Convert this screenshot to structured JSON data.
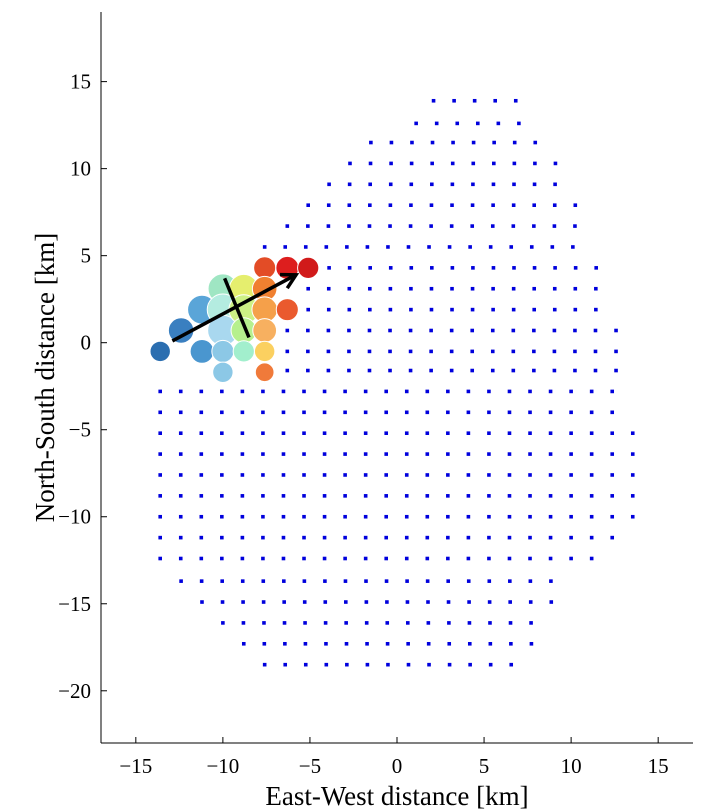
{
  "chart_data": {
    "type": "scatter",
    "title": "",
    "xlabel": "East-West distance [km]",
    "ylabel": "North-South distance [km]",
    "xlim": [
      -17,
      17
    ],
    "ylim": [
      -23,
      19
    ],
    "xticks": [
      -15,
      -10,
      -5,
      0,
      5,
      10,
      15
    ],
    "yticks": [
      -20,
      -15,
      -10,
      -5,
      0,
      5,
      10,
      15
    ],
    "xtick_labels": [
      "−15",
      "−10",
      "−5",
      "0",
      "5",
      "10",
      "15"
    ],
    "ytick_labels": [
      "−20",
      "−15",
      "−10",
      "−5",
      "0",
      "5",
      "10",
      "15"
    ],
    "grid": false,
    "legend": "none",
    "series": [
      {
        "marker": "small-square",
        "color": "#0000dd",
        "note_hidden": "",
        "x": [],
        "y": []
      },
      {
        "marker": "circle",
        "colormap": "jet",
        "points": [
          {
            "x": -13.6,
            "y": -0.5,
            "size": 1.0,
            "color": "#2b6eb0"
          },
          {
            "x": -12.4,
            "y": 0.7,
            "size": 1.6,
            "color": "#3a7fc0"
          },
          {
            "x": -11.2,
            "y": 1.9,
            "size": 2.0,
            "color": "#5aa5d8"
          },
          {
            "x": -11.2,
            "y": -0.5,
            "size": 1.4,
            "color": "#4a96cf"
          },
          {
            "x": -10.0,
            "y": 3.1,
            "size": 2.1,
            "color": "#9fe6c3"
          },
          {
            "x": -10.0,
            "y": 1.9,
            "size": 2.3,
            "color": "#b4ece0"
          },
          {
            "x": -10.0,
            "y": 0.7,
            "size": 2.2,
            "color": "#a9d8ef"
          },
          {
            "x": -10.0,
            "y": -0.5,
            "size": 1.2,
            "color": "#8cc8e6"
          },
          {
            "x": -10.0,
            "y": -1.7,
            "size": 1.0,
            "color": "#8cc8e6"
          },
          {
            "x": -8.8,
            "y": 3.1,
            "size": 2.0,
            "color": "#e5ee6e"
          },
          {
            "x": -8.8,
            "y": 1.9,
            "size": 2.1,
            "color": "#cdf085"
          },
          {
            "x": -8.8,
            "y": 0.7,
            "size": 1.6,
            "color": "#b6f08e"
          },
          {
            "x": -8.8,
            "y": -0.5,
            "size": 1.1,
            "color": "#a2efcd"
          },
          {
            "x": -7.6,
            "y": 4.3,
            "size": 1.2,
            "color": "#e34c26"
          },
          {
            "x": -7.6,
            "y": 3.1,
            "size": 1.5,
            "color": "#f08030"
          },
          {
            "x": -7.6,
            "y": 1.9,
            "size": 1.6,
            "color": "#f5a04a"
          },
          {
            "x": -7.6,
            "y": 0.7,
            "size": 1.4,
            "color": "#f7b060"
          },
          {
            "x": -7.6,
            "y": -0.5,
            "size": 1.0,
            "color": "#fbd060"
          },
          {
            "x": -7.6,
            "y": -1.7,
            "size": 0.8,
            "color": "#f07a3a"
          },
          {
            "x": -6.3,
            "y": 4.3,
            "size": 1.3,
            "color": "#dd1e1e"
          },
          {
            "x": -6.3,
            "y": 1.9,
            "size": 1.2,
            "color": "#ea5a2e"
          },
          {
            "x": -5.1,
            "y": 4.3,
            "size": 1.1,
            "color": "#d11a1a"
          }
        ]
      },
      {
        "type": "line",
        "color": "#000000",
        "x": [
          -9.9,
          -8.5
        ],
        "y": [
          3.7,
          0.3
        ]
      },
      {
        "type": "arrow",
        "color": "#000000",
        "x": [
          -12.9,
          -5.8
        ],
        "y": [
          0.1,
          3.9
        ]
      }
    ]
  }
}
